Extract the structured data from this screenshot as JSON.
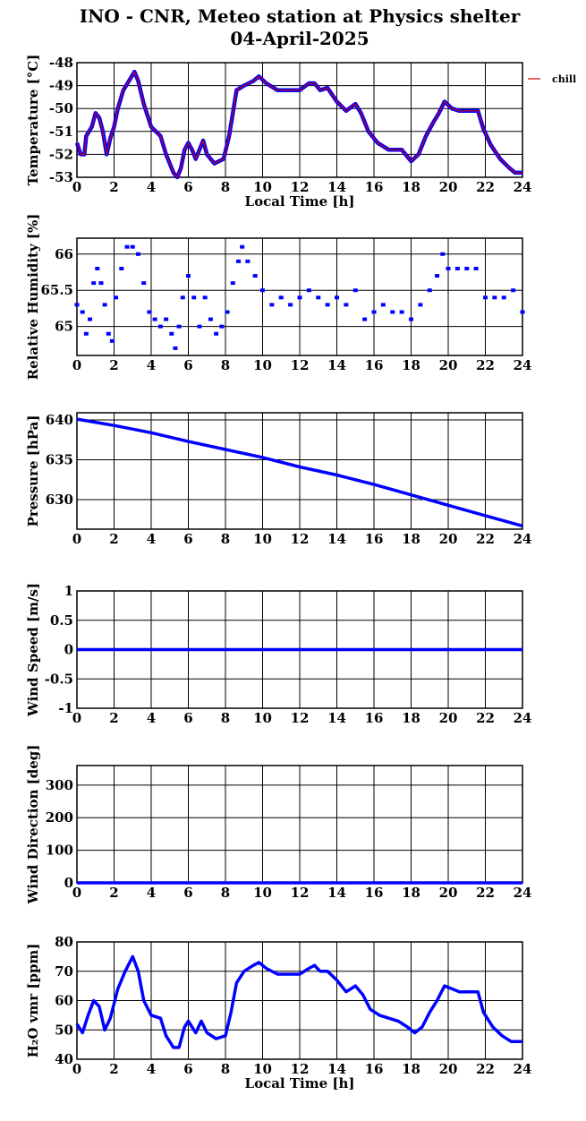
{
  "title": "INO - CNR, Meteo station at Physics shelter",
  "subtitle": "04-April-2025",
  "chart_data": [
    {
      "type": "line",
      "ylabel": "Temperature [°C]",
      "xlabel": "Local Time [h]",
      "xlim": [
        0,
        24
      ],
      "xticks": [
        0,
        2,
        4,
        6,
        8,
        10,
        12,
        14,
        16,
        18,
        20,
        22,
        24
      ],
      "ylim": [
        -53,
        -48
      ],
      "yticks": [
        -53,
        -52,
        -51,
        -50,
        -49,
        -48
      ],
      "grid": true,
      "legend": "outside right",
      "series": [
        {
          "name": "chill",
          "color": "#d00000",
          "marker_color": "#0000ff",
          "x": [
            0,
            0.2,
            0.4,
            0.5,
            0.8,
            1.0,
            1.2,
            1.4,
            1.6,
            1.8,
            2.0,
            2.2,
            2.5,
            2.8,
            3.1,
            3.3,
            3.6,
            4.0,
            4.5,
            4.8,
            5.2,
            5.4,
            5.6,
            5.8,
            6.0,
            6.2,
            6.4,
            6.6,
            6.8,
            7.0,
            7.4,
            7.9,
            8.2,
            8.4,
            8.6,
            9.0,
            9.5,
            9.8,
            10.2,
            10.8,
            11.5,
            12.0,
            12.5,
            12.8,
            13.1,
            13.5,
            14.0,
            14.5,
            15.0,
            15.3,
            15.7,
            16.2,
            16.8,
            17.5,
            18.0,
            18.4,
            18.8,
            19.2,
            19.5,
            19.8,
            20.2,
            20.6,
            21.6,
            21.9,
            22.3,
            22.8,
            23.3,
            23.6,
            24.0
          ],
          "values": [
            -51.5,
            -52,
            -52,
            -51.2,
            -50.8,
            -50.2,
            -50.4,
            -51,
            -52,
            -51.3,
            -50.8,
            -50,
            -49.2,
            -48.8,
            -48.4,
            -48.8,
            -49.8,
            -50.8,
            -51.2,
            -52,
            -52.8,
            -53,
            -52.6,
            -51.8,
            -51.5,
            -51.8,
            -52.2,
            -51.8,
            -51.4,
            -52,
            -52.4,
            -52.2,
            -51.2,
            -50.2,
            -49.2,
            -49,
            -48.8,
            -48.6,
            -48.9,
            -49.2,
            -49.2,
            -49.2,
            -48.9,
            -48.9,
            -49.2,
            -49.1,
            -49.7,
            -50.1,
            -49.8,
            -50.2,
            -51,
            -51.5,
            -51.8,
            -51.8,
            -52.3,
            -52,
            -51.2,
            -50.6,
            -50.2,
            -49.7,
            -50,
            -50.1,
            -50.1,
            -50.9,
            -51.6,
            -52.2,
            -52.6,
            -52.8,
            -52.8
          ]
        }
      ]
    },
    {
      "type": "scatter",
      "ylabel": "Relative Humidity [%]",
      "xlim": [
        0,
        24
      ],
      "xticks": [
        0,
        2,
        4,
        6,
        8,
        10,
        12,
        14,
        16,
        18,
        20,
        22,
        24
      ],
      "ylim": [
        64.6,
        66.22
      ],
      "yticks": [
        65,
        65.5,
        66
      ],
      "grid": true,
      "series": [
        {
          "color": "#0000ff",
          "x": [
            0,
            0.3,
            0.5,
            0.7,
            0.9,
            1.1,
            1.3,
            1.5,
            1.7,
            1.9,
            2.1,
            2.4,
            2.7,
            3.0,
            3.3,
            3.6,
            3.9,
            4.2,
            4.5,
            4.8,
            5.1,
            5.3,
            5.5,
            5.7,
            6.0,
            6.3,
            6.6,
            6.9,
            7.2,
            7.5,
            7.8,
            8.1,
            8.4,
            8.7,
            8.9,
            9.2,
            9.6,
            10.0,
            10.5,
            11.0,
            11.5,
            12.0,
            12.5,
            13.0,
            13.5,
            14.0,
            14.5,
            15.0,
            15.5,
            16.0,
            16.5,
            17.0,
            17.5,
            18.0,
            18.5,
            19.0,
            19.4,
            19.7,
            20.0,
            20.5,
            21.0,
            21.5,
            22.0,
            22.5,
            23.0,
            23.5,
            24.0
          ],
          "values": [
            65.3,
            65.2,
            64.9,
            65.1,
            65.6,
            65.8,
            65.6,
            65.3,
            64.9,
            64.8,
            65.4,
            65.8,
            66.1,
            66.1,
            66.0,
            65.6,
            65.2,
            65.1,
            65.0,
            65.1,
            64.9,
            64.7,
            65.0,
            65.4,
            65.7,
            65.4,
            65.0,
            65.4,
            65.1,
            64.9,
            65.0,
            65.2,
            65.6,
            65.9,
            66.1,
            65.9,
            65.7,
            65.5,
            65.3,
            65.4,
            65.3,
            65.4,
            65.5,
            65.4,
            65.3,
            65.4,
            65.3,
            65.5,
            65.1,
            65.2,
            65.3,
            65.2,
            65.2,
            65.1,
            65.3,
            65.5,
            65.7,
            66.0,
            65.8,
            65.8,
            65.8,
            65.8,
            65.4,
            65.4,
            65.4,
            65.5,
            65.2
          ]
        }
      ]
    },
    {
      "type": "line",
      "ylabel": "Pressure [hPa]",
      "xlim": [
        0,
        24
      ],
      "xticks": [
        0,
        2,
        4,
        6,
        8,
        10,
        12,
        14,
        16,
        18,
        20,
        22,
        24
      ],
      "ylim": [
        626.3,
        640.9
      ],
      "yticks": [
        630,
        635,
        640
      ],
      "grid": true,
      "series": [
        {
          "color": "#0000ff",
          "x": [
            0,
            2,
            4,
            6,
            8,
            10,
            12,
            14,
            16,
            18,
            20,
            22,
            24
          ],
          "values": [
            640.1,
            639.3,
            638.4,
            637.3,
            636.3,
            635.3,
            634.1,
            633.1,
            631.9,
            630.6,
            629.3,
            628.0,
            626.7
          ]
        }
      ]
    },
    {
      "type": "line",
      "ylabel": "Wind Speed [m/s]",
      "xlim": [
        0,
        24
      ],
      "xticks": [
        0,
        2,
        4,
        6,
        8,
        10,
        12,
        14,
        16,
        18,
        20,
        22,
        24
      ],
      "ylim": [
        -1,
        1
      ],
      "yticks": [
        -1,
        -0.5,
        0,
        0.5,
        1
      ],
      "grid": true,
      "series": [
        {
          "color": "#0000ff",
          "x": [
            0,
            24
          ],
          "values": [
            0,
            0
          ]
        }
      ]
    },
    {
      "type": "line",
      "ylabel": "Wind Direction [deg]",
      "xlim": [
        0,
        24
      ],
      "xticks": [
        0,
        2,
        4,
        6,
        8,
        10,
        12,
        14,
        16,
        18,
        20,
        22,
        24
      ],
      "ylim": [
        0,
        360
      ],
      "yticks": [
        0,
        100,
        200,
        300
      ],
      "grid": true,
      "series": [
        {
          "color": "#0000ff",
          "x": [
            0,
            24
          ],
          "values": [
            0,
            0
          ]
        }
      ]
    },
    {
      "type": "line",
      "ylabel": "H₂O vmr [ppm]",
      "xlabel": "Local Time [h]",
      "xlim": [
        0,
        24
      ],
      "xticks": [
        0,
        2,
        4,
        6,
        8,
        10,
        12,
        14,
        16,
        18,
        20,
        22,
        24
      ],
      "ylim": [
        40,
        80
      ],
      "yticks": [
        40,
        50,
        60,
        70,
        80
      ],
      "grid": true,
      "series": [
        {
          "color": "#0000ff",
          "x": [
            0,
            0.3,
            0.6,
            0.9,
            1.2,
            1.5,
            1.8,
            2.2,
            2.6,
            3.0,
            3.3,
            3.6,
            4.0,
            4.5,
            4.8,
            5.2,
            5.5,
            5.8,
            6.0,
            6.4,
            6.7,
            7.0,
            7.5,
            8.0,
            8.3,
            8.6,
            9.0,
            9.5,
            9.8,
            10.2,
            10.8,
            11.5,
            12.0,
            12.5,
            12.8,
            13.1,
            13.5,
            14.0,
            14.5,
            15.0,
            15.4,
            15.8,
            16.3,
            16.8,
            17.3,
            17.8,
            18.2,
            18.6,
            19.0,
            19.4,
            19.8,
            20.2,
            20.6,
            21.6,
            21.9,
            22.4,
            22.9,
            23.4,
            24.0
          ],
          "values": [
            52,
            49,
            55,
            60,
            58,
            50,
            54,
            64,
            70,
            75,
            70,
            60,
            55,
            54,
            48,
            44,
            44,
            51,
            53,
            49,
            53,
            49,
            47,
            48,
            56,
            66,
            70,
            72,
            73,
            71,
            69,
            69,
            69,
            71,
            72,
            70,
            70,
            67,
            63,
            65,
            62,
            57,
            55,
            54,
            53,
            51,
            49,
            51,
            56,
            60,
            65,
            64,
            63,
            63,
            56,
            51,
            48,
            46,
            46
          ]
        }
      ]
    }
  ]
}
